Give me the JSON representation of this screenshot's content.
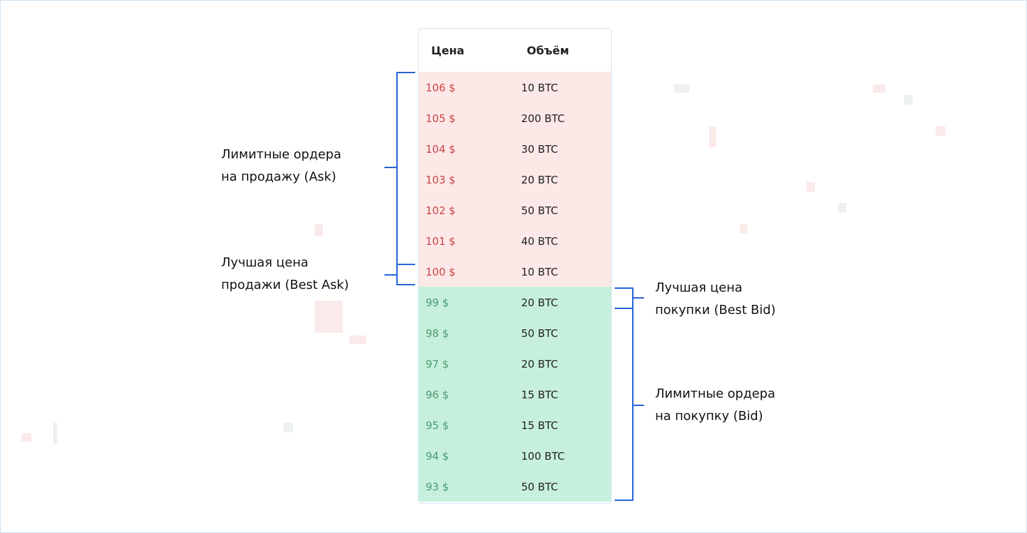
{
  "table": {
    "header": [
      "Цена",
      "Объём"
    ],
    "asks": [
      [
        "106 $",
        "10 BTC"
      ],
      [
        "105 $",
        "200 BTC"
      ],
      [
        "104 $",
        "30 BTC"
      ],
      [
        "103 $",
        "20 BTC"
      ],
      [
        "102 $",
        "50 BTC"
      ],
      [
        "101 $",
        "40 BTC"
      ],
      [
        "100 $",
        "10 BTC"
      ]
    ],
    "bids": [
      [
        "99 $",
        "20 BTC"
      ],
      [
        "98 $",
        "50 BTC"
      ],
      [
        "97 $",
        "20 BTC"
      ],
      [
        "96 $",
        "15 BTC"
      ],
      [
        "95 $",
        "15 BTC"
      ],
      [
        "94 $",
        "100 BTC"
      ],
      [
        "93 $",
        "50 BTC"
      ]
    ]
  },
  "labels": {
    "asks": [
      "Лимитные ордера",
      "на продажу (Ask)"
    ],
    "best_ask": [
      "Лучшая цена",
      "продажи (Best Ask)"
    ],
    "best_bid": [
      "Лучшая цена",
      "покупки (Best Bid)"
    ],
    "bids": [
      "Лимитные ордера",
      "на покупку (Bid)"
    ]
  }
}
